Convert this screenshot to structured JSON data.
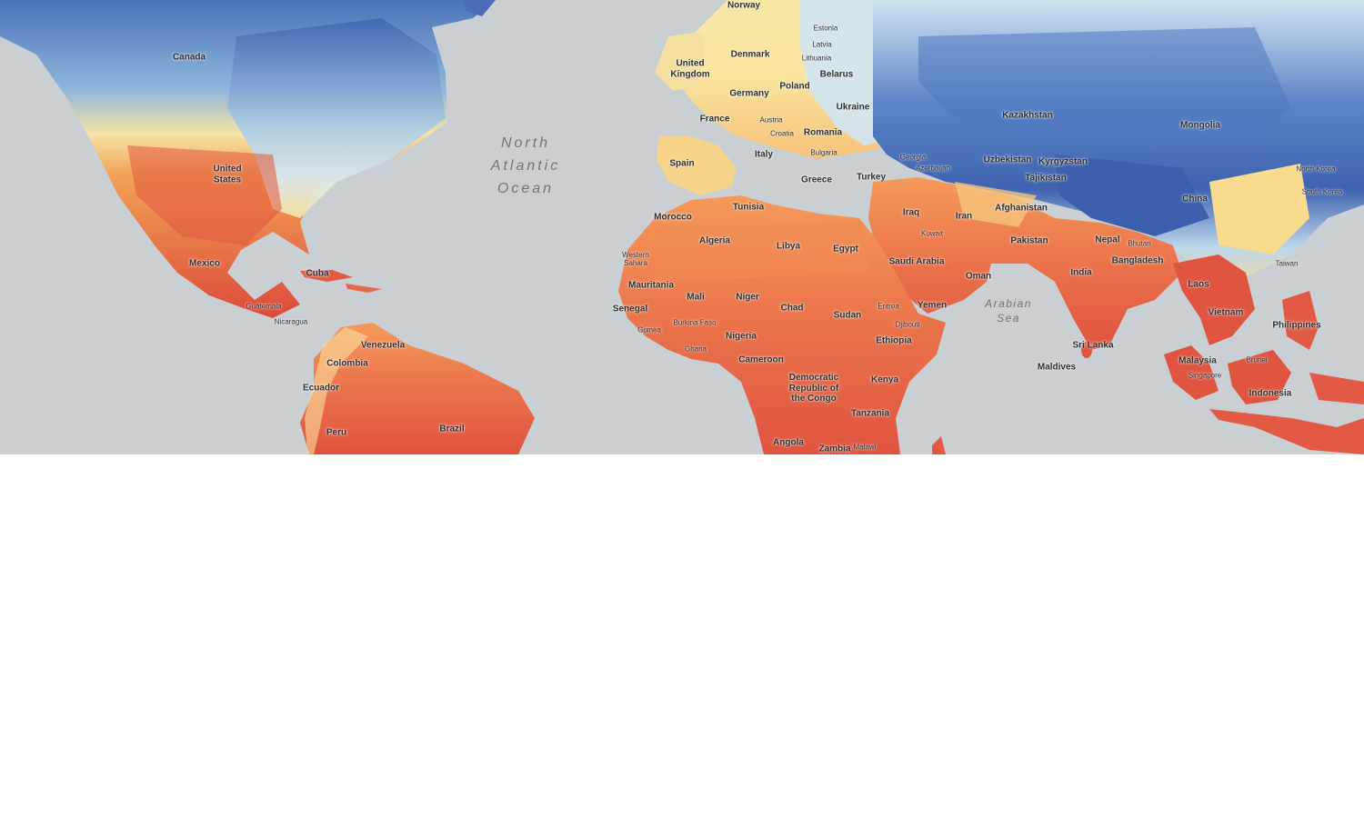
{
  "map": {
    "oceans": {
      "north_atlantic": "North\nAtlantic\nOcean",
      "arabian_sea": "Arabian\nSea"
    },
    "countries": {
      "norway": "Norway",
      "canada": "Canada",
      "estonia": "Estonia",
      "latvia": "Latvia",
      "lithuania": "Lithuania",
      "denmark": "Denmark",
      "united_kingdom": "United\nKingdom",
      "belarus": "Belarus",
      "germany": "Germany",
      "poland": "Poland",
      "ukraine": "Ukraine",
      "kazakhstan": "Kazakhstan",
      "mongolia": "Mongolia",
      "france": "France",
      "austria": "Austria",
      "croatia": "Croatia",
      "romania": "Romania",
      "bulgaria": "Bulgaria",
      "italy": "Italy",
      "georgia": "Georgia",
      "azerbaijan": "Azerbaijan",
      "spain": "Spain",
      "uzbekistan": "Uzbekistan",
      "kyrgyzstan": "Kyrgyzstan",
      "tajikistan": "Tajikistan",
      "north_korea": "North Korea",
      "south_korea": "South Korea",
      "united_states": "United\nStates",
      "greece": "Greece",
      "turkey": "Turkey",
      "china": "China",
      "tunisia": "Tunisia",
      "morocco": "Morocco",
      "iraq": "Iraq",
      "iran": "Iran",
      "afghanistan": "Afghanistan",
      "algeria": "Algeria",
      "libya": "Libya",
      "egypt": "Egypt",
      "kuwait": "Kuwait",
      "pakistan": "Pakistan",
      "nepal": "Nepal",
      "bhutan": "Bhutan",
      "western_sahara": "Western\nSahara",
      "saudi_arabia": "Saudi Arabia",
      "bangladesh": "Bangladesh",
      "taiwan": "Taiwan",
      "mexico": "Mexico",
      "cuba": "Cuba",
      "india": "India",
      "oman": "Oman",
      "mauritania": "Mauritania",
      "laos": "Laos",
      "mali": "Mali",
      "niger": "Niger",
      "guatemala": "Guatemala",
      "senegal": "Senegal",
      "chad": "Chad",
      "eritrea": "Eritrea",
      "yemen": "Yemen",
      "sudan": "Sudan",
      "vietnam": "Vietnam",
      "nicaragua": "Nicaragua",
      "burkina_faso": "Burkina Faso",
      "djibouti": "Djibouti",
      "philippines": "Philippines",
      "guinea": "Guinea",
      "nigeria": "Nigeria",
      "ethiopia": "Ethiopia",
      "venezuela": "Venezuela",
      "sri_lanka": "Sri Lanka",
      "ghana": "Ghana",
      "cameroon": "Cameroon",
      "colombia": "Colombia",
      "brunei": "Brunei",
      "malaysia": "Malaysia",
      "maldives": "Maldives",
      "singapore": "Singapore",
      "drc": "Democratic\nRepublic of\nthe Congo",
      "kenya": "Kenya",
      "ecuador": "Ecuador",
      "indonesia": "Indonesia",
      "tanzania": "Tanzania",
      "brazil": "Brazil",
      "peru": "Peru",
      "angola": "Angola",
      "malawi": "Malawi",
      "zambia": "Zambia"
    }
  }
}
